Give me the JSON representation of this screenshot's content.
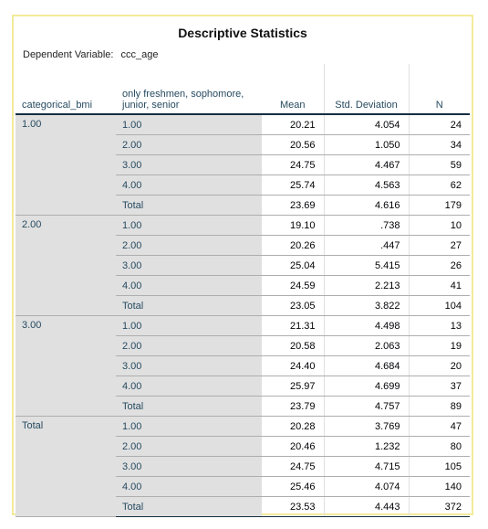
{
  "title": "Descriptive Statistics",
  "dependent_variable": {
    "label": "Dependent Variable:",
    "value": "ccc_age"
  },
  "headers": {
    "col1": "categorical_bmi",
    "col2": "only freshmen, sophomore, junior, senior",
    "mean": "Mean",
    "sd": "Std. Deviation",
    "n": "N"
  },
  "groups": [
    {
      "label": "1.00",
      "rows": [
        {
          "sub": "1.00",
          "mean": "20.21",
          "sd": "4.054",
          "n": "24"
        },
        {
          "sub": "2.00",
          "mean": "20.56",
          "sd": "1.050",
          "n": "34"
        },
        {
          "sub": "3.00",
          "mean": "24.75",
          "sd": "4.467",
          "n": "59"
        },
        {
          "sub": "4.00",
          "mean": "25.74",
          "sd": "4.563",
          "n": "62"
        },
        {
          "sub": "Total",
          "mean": "23.69",
          "sd": "4.616",
          "n": "179"
        }
      ]
    },
    {
      "label": "2.00",
      "rows": [
        {
          "sub": "1.00",
          "mean": "19.10",
          "sd": ".738",
          "n": "10"
        },
        {
          "sub": "2.00",
          "mean": "20.26",
          "sd": ".447",
          "n": "27"
        },
        {
          "sub": "3.00",
          "mean": "25.04",
          "sd": "5.415",
          "n": "26"
        },
        {
          "sub": "4.00",
          "mean": "24.59",
          "sd": "2.213",
          "n": "41"
        },
        {
          "sub": "Total",
          "mean": "23.05",
          "sd": "3.822",
          "n": "104"
        }
      ]
    },
    {
      "label": "3.00",
      "rows": [
        {
          "sub": "1.00",
          "mean": "21.31",
          "sd": "4.498",
          "n": "13"
        },
        {
          "sub": "2.00",
          "mean": "20.58",
          "sd": "2.063",
          "n": "19"
        },
        {
          "sub": "3.00",
          "mean": "24.40",
          "sd": "4.684",
          "n": "20"
        },
        {
          "sub": "4.00",
          "mean": "25.97",
          "sd": "4.699",
          "n": "37"
        },
        {
          "sub": "Total",
          "mean": "23.79",
          "sd": "4.757",
          "n": "89"
        }
      ]
    },
    {
      "label": "Total",
      "rows": [
        {
          "sub": "1.00",
          "mean": "20.28",
          "sd": "3.769",
          "n": "47"
        },
        {
          "sub": "2.00",
          "mean": "20.46",
          "sd": "1.232",
          "n": "80"
        },
        {
          "sub": "3.00",
          "mean": "24.75",
          "sd": "4.715",
          "n": "105"
        },
        {
          "sub": "4.00",
          "mean": "25.46",
          "sd": "4.074",
          "n": "140"
        },
        {
          "sub": "Total",
          "mean": "23.53",
          "sd": "4.443",
          "n": "372"
        }
      ]
    }
  ]
}
